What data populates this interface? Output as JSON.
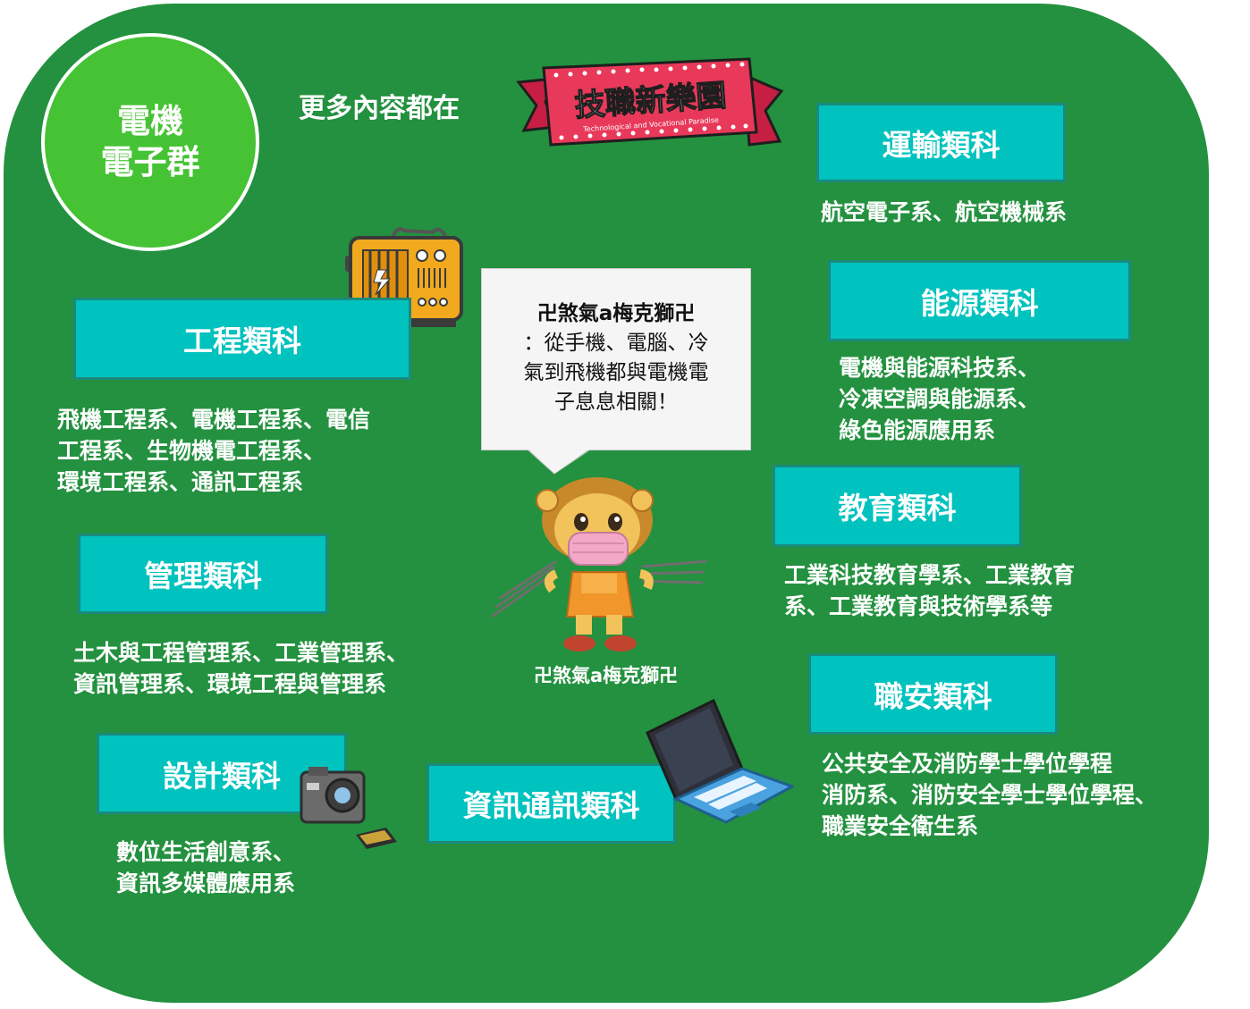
{
  "group": {
    "line1": "電機",
    "line2": "電子群"
  },
  "more_text": "更多內容都在",
  "banner": {
    "title": "技職新樂園",
    "subtitle": "Technological and Vocational Paradise"
  },
  "bubble": {
    "name": "卍煞氣a梅克獅卍",
    "lines": [
      "：從手機、電腦、冷",
      "氣到飛機都與電機電",
      "子息息相關！"
    ]
  },
  "mascot_label": "卍煞氣a梅克獅卍",
  "categories": {
    "transport": {
      "title": "運輸類科",
      "lines": [
        "航空電子系、航空機械系"
      ]
    },
    "energy": {
      "title": "能源類科",
      "lines": [
        "電機與能源科技系、",
        "冷凍空調與能源系、",
        "綠色能源應用系"
      ]
    },
    "engineering": {
      "title": "工程類科",
      "lines": [
        "飛機工程系、電機工程系、電信",
        "工程系、生物機電工程系、",
        "環境工程系、通訊工程系"
      ]
    },
    "education": {
      "title": "教育類科",
      "lines": [
        "工業科技教育學系、工業教育",
        "系、工業教育與技術學系等"
      ]
    },
    "management": {
      "title": "管理類科",
      "lines": [
        "土木與工程管理系、工業管理系、",
        "資訊管理系、環境工程與管理系"
      ]
    },
    "safety": {
      "title": "職安類科",
      "lines": [
        "公共安全及消防學士學位學程",
        "消防系、消防安全學士學位學程、",
        "職業安全衛生系"
      ]
    },
    "design": {
      "title": "設計類科",
      "lines": [
        "數位生活創意系、",
        "資訊多媒體應用系"
      ]
    },
    "ict": {
      "title": "資訊通訊類科"
    }
  },
  "colors": {
    "background": "#23913f",
    "badge": "#46c335",
    "category_box": "#00c2be",
    "banner": "#e8395a"
  },
  "icons": [
    "radio-icon",
    "camera-icon",
    "memory-card-icon",
    "laptop-icon",
    "lion-mascot-icon"
  ]
}
